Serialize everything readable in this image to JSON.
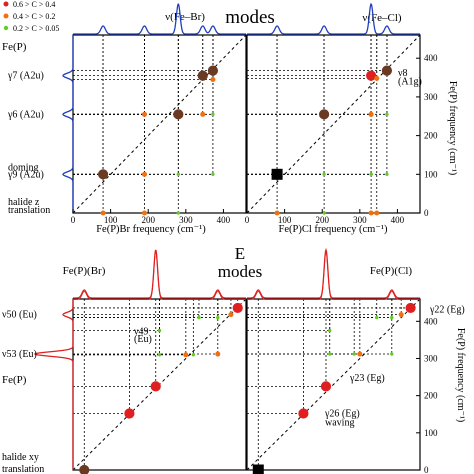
{
  "legend": {
    "items": [
      {
        "label": "0.6 > C > 0.4",
        "color": "#e02020"
      },
      {
        "label": "0.4 > C > 0.2",
        "color": "#f07010"
      },
      {
        "label": "0.2 > C > 0.05",
        "color": "#60d020"
      }
    ]
  },
  "colors": {
    "axis": "#000000",
    "top_spectrum": "#2040c0",
    "bottom_spectrum": "#e02020",
    "brown_marker": "#6b3a22",
    "red_marker": "#e02020",
    "orange_marker": "#f07010",
    "green_marker": "#60d020"
  },
  "top": {
    "title": "modes",
    "fe_p_label": "Fe(P)",
    "peak_labels": {
      "left": "ν(Fe–Br)",
      "right": "ν(Fe–Cl)"
    },
    "y_mode_labels": [
      {
        "text": "γ7 (A2u)",
        "freq": 355
      },
      {
        "text": "γ6 (A2u)",
        "freq": 255
      },
      {
        "text": "doming",
        "freq": 118
      },
      {
        "text": "γ9 (A2u)",
        "freq": 100
      },
      {
        "text": "halide z",
        "freq": 28
      },
      {
        "text": "translation",
        "freq": 8
      }
    ],
    "right_annot": [
      {
        "text": "ν8",
        "freq": 362
      },
      {
        "text": "(A1g)",
        "freq": 340
      }
    ],
    "xlabels": [
      "Fe(P)Br frequency (cm⁻¹)",
      "Fe(P)Cl frequency (cm⁻¹)"
    ],
    "ylabel_right": "Fe(P) frequency (cm⁻¹)",
    "x_ticks": [
      0,
      100,
      200,
      300,
      400
    ],
    "y_ticks": [
      0,
      100,
      200,
      300,
      400
    ]
  },
  "bottom": {
    "title_line1": "E",
    "title_line2": "modes",
    "panel_titles": [
      "Fe(P)(Br)",
      "Fe(P)(Cl)"
    ],
    "fe_p_label": "Fe(P)",
    "y_mode_labels": [
      {
        "text": "ν50 (Eu)",
        "freq": 418
      },
      {
        "text": "ν53 (Eu)",
        "freq": 312
      }
    ],
    "halide_labels": [
      "halide xy",
      "translation"
    ],
    "inner_annot": [
      {
        "text": "ν49",
        "freq": 372
      },
      {
        "text": "(Eu)",
        "freq": 352
      }
    ],
    "right_annot": [
      {
        "text": "γ22 (Eg)",
        "freq": 432
      },
      {
        "text": "γ23 (Eg)",
        "freq": 248
      },
      {
        "text": "γ26 (Eg)",
        "freq": 152
      },
      {
        "text": "waving",
        "freq": 128
      }
    ],
    "ylabel_right": "Fe(P) frequency (cm⁻¹)",
    "y_ticks": [
      0,
      100,
      200,
      300,
      400
    ]
  },
  "chart_data": [
    {
      "type": "scatter",
      "title": "modes",
      "xlabel": "Fe(P)Br frequency (cm⁻¹)",
      "ylabel": "",
      "xlim": [
        0,
        460
      ],
      "ylim": [
        0,
        460
      ],
      "points": [
        {
          "x": 80,
          "y": 100,
          "color": "brown",
          "size": 6
        },
        {
          "x": 80,
          "y": 0,
          "color": "orange",
          "size": 3
        },
        {
          "x": 190,
          "y": 0,
          "color": "orange",
          "size": 3
        },
        {
          "x": 190,
          "y": 100,
          "color": "orange",
          "size": 3
        },
        {
          "x": 190,
          "y": 255,
          "color": "orange",
          "size": 3
        },
        {
          "x": 280,
          "y": 0,
          "color": "green",
          "size": 2
        },
        {
          "x": 280,
          "y": 100,
          "color": "green",
          "size": 2
        },
        {
          "x": 280,
          "y": 255,
          "color": "brown",
          "size": 6
        },
        {
          "x": 345,
          "y": 355,
          "color": "brown",
          "size": 6
        },
        {
          "x": 345,
          "y": 255,
          "color": "orange",
          "size": 3
        },
        {
          "x": 372,
          "y": 368,
          "color": "brown",
          "size": 6
        },
        {
          "x": 372,
          "y": 345,
          "color": "orange",
          "size": 3
        },
        {
          "x": 372,
          "y": 255,
          "color": "green",
          "size": 2
        },
        {
          "x": 372,
          "y": 100,
          "color": "green",
          "size": 2
        }
      ],
      "spectrum_peaks": [
        80,
        190,
        280,
        345,
        372
      ],
      "main_peak": 280
    },
    {
      "type": "scatter",
      "xlabel": "Fe(P)(Cl) frequency (cm⁻¹)",
      "ylabel": "Fe(P) frequency (cm⁻¹)",
      "xlim": [
        0,
        460
      ],
      "ylim": [
        0,
        460
      ],
      "points": [
        {
          "x": 80,
          "y": 100,
          "color": "black-square",
          "size": 6
        },
        {
          "x": 80,
          "y": 0,
          "color": "orange",
          "size": 3
        },
        {
          "x": 205,
          "y": 255,
          "color": "brown",
          "size": 6
        },
        {
          "x": 205,
          "y": 100,
          "color": "green",
          "size": 2
        },
        {
          "x": 205,
          "y": 0,
          "color": "green",
          "size": 2
        },
        {
          "x": 330,
          "y": 355,
          "color": "red",
          "size": 6
        },
        {
          "x": 330,
          "y": 255,
          "color": "orange",
          "size": 3
        },
        {
          "x": 330,
          "y": 100,
          "color": "green",
          "size": 2
        },
        {
          "x": 330,
          "y": 0,
          "color": "orange",
          "size": 3
        },
        {
          "x": 345,
          "y": 348,
          "color": "orange",
          "size": 3
        },
        {
          "x": 345,
          "y": 0,
          "color": "orange",
          "size": 3
        },
        {
          "x": 372,
          "y": 368,
          "color": "brown",
          "size": 6
        },
        {
          "x": 372,
          "y": 255,
          "color": "green",
          "size": 2
        },
        {
          "x": 372,
          "y": 100,
          "color": "green",
          "size": 2
        }
      ],
      "spectrum_peaks": [
        80,
        205,
        330,
        372
      ],
      "main_peak": 330
    },
    {
      "type": "scatter",
      "title": "Fe(P)(Br)",
      "xlim": [
        0,
        460
      ],
      "ylim": [
        0,
        460
      ],
      "points": [
        {
          "x": 30,
          "y": 0,
          "color": "brown",
          "size": 6
        },
        {
          "x": 150,
          "y": 152,
          "color": "red",
          "size": 6
        },
        {
          "x": 220,
          "y": 225,
          "color": "red",
          "size": 6
        },
        {
          "x": 230,
          "y": 310,
          "color": "green",
          "size": 2
        },
        {
          "x": 230,
          "y": 375,
          "color": "green",
          "size": 2
        },
        {
          "x": 300,
          "y": 310,
          "color": "orange",
          "size": 3
        },
        {
          "x": 320,
          "y": 310,
          "color": "green",
          "size": 2
        },
        {
          "x": 335,
          "y": 410,
          "color": "green",
          "size": 2
        },
        {
          "x": 385,
          "y": 410,
          "color": "green",
          "size": 2
        },
        {
          "x": 385,
          "y": 312,
          "color": "orange",
          "size": 3
        },
        {
          "x": 420,
          "y": 418,
          "color": "orange",
          "size": 3
        },
        {
          "x": 438,
          "y": 436,
          "color": "red",
          "size": 6
        }
      ],
      "spectrum_peaks": [
        30,
        220,
        385
      ],
      "main_peak": 220
    },
    {
      "type": "scatter",
      "title": "Fe(P)(Cl)",
      "ylabel": "Fe(P) frequency (cm⁻¹)",
      "xlim": [
        0,
        460
      ],
      "ylim": [
        0,
        460
      ],
      "points": [
        {
          "x": 30,
          "y": 0,
          "color": "black-square",
          "size": 6
        },
        {
          "x": 150,
          "y": 152,
          "color": "red",
          "size": 6
        },
        {
          "x": 210,
          "y": 225,
          "color": "red",
          "size": 6
        },
        {
          "x": 220,
          "y": 312,
          "color": "green",
          "size": 2
        },
        {
          "x": 220,
          "y": 375,
          "color": "green",
          "size": 2
        },
        {
          "x": 285,
          "y": 312,
          "color": "green",
          "size": 2
        },
        {
          "x": 300,
          "y": 312,
          "color": "orange",
          "size": 3
        },
        {
          "x": 345,
          "y": 410,
          "color": "green",
          "size": 2
        },
        {
          "x": 385,
          "y": 410,
          "color": "green",
          "size": 2
        },
        {
          "x": 385,
          "y": 312,
          "color": "green",
          "size": 2
        },
        {
          "x": 410,
          "y": 418,
          "color": "orange",
          "size": 3
        },
        {
          "x": 435,
          "y": 436,
          "color": "red",
          "size": 6
        }
      ],
      "spectrum_peaks": [
        30,
        210,
        385
      ],
      "main_peak": 210
    }
  ]
}
